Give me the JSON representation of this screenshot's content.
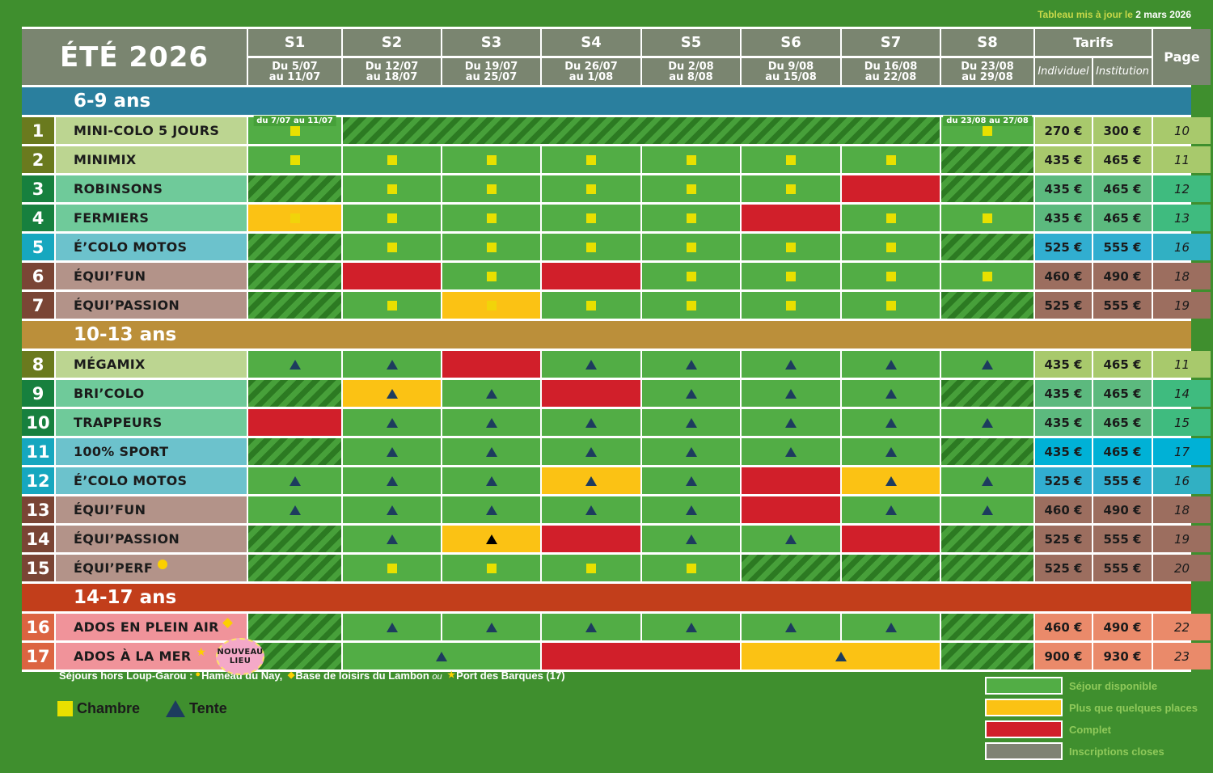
{
  "updated": {
    "label": "Tableau mis à jour le",
    "date": "2 mars 2026"
  },
  "header": {
    "title": "ÉTÉ 2026",
    "tarifs": "Tarifs",
    "individuel": "Individuel",
    "institution": "Institution",
    "page": "Page",
    "weeks": [
      {
        "w": "S1",
        "d1": "Du 5/07",
        "d2": "au 11/07"
      },
      {
        "w": "S2",
        "d1": "Du 12/07",
        "d2": "au 18/07"
      },
      {
        "w": "S3",
        "d1": "Du 19/07",
        "d2": "au 25/07"
      },
      {
        "w": "S4",
        "d1": "Du 26/07",
        "d2": "au 1/08"
      },
      {
        "w": "S5",
        "d1": "Du 2/08",
        "d2": "au 8/08"
      },
      {
        "w": "S6",
        "d1": "Du 9/08",
        "d2": "au 15/08"
      },
      {
        "w": "S7",
        "d1": "Du 16/08",
        "d2": "au 22/08"
      },
      {
        "w": "S8",
        "d1": "Du 23/08",
        "d2": "au 29/08"
      }
    ]
  },
  "colors": {
    "background": "#3f8f2e",
    "available": "#52ad45",
    "few_places": "#fbc214",
    "full": "#d11f2a",
    "closed": "#7f8373",
    "header": "#7a8570",
    "groups": {
      "lg": [
        "#6a7a1e",
        "#bcd591",
        "#a8c96c",
        "#a8c96c"
      ],
      "tg": [
        "#17803e",
        "#6fca9a",
        "#5cb97e",
        "#3fbb7f"
      ],
      "cy": [
        "#16a7bf",
        "#6cc2cc",
        "#31aed0",
        "#31b0c3"
      ],
      "cy2": [
        "#16a7bf",
        "#6cc2cc",
        "#00b1d6",
        "#00b1d6"
      ],
      "br": [
        "#7a4535",
        "#b39389",
        "#9c6e5f",
        "#9c6e5f"
      ],
      "pk": [
        "#dc6441",
        "#f0939a",
        "#ea8a6a",
        "#ea8a6a"
      ]
    }
  },
  "sections": [
    {
      "label": "6-9 ans",
      "color": "#2a7f9e",
      "rows": [
        {
          "n": "1",
          "name": "MINI-COLO 5 JOURS",
          "g": "lg",
          "ind": "270 €",
          "inst": "300 €",
          "page": "10",
          "cells": [
            [
              "ok",
              "sq",
              1,
              "du 7/07 au 11/07"
            ],
            [
              "hatch",
              "",
              6
            ],
            [
              "ok",
              "sq",
              1,
              "du 23/08 au 27/08"
            ]
          ]
        },
        {
          "n": "2",
          "name": "MINIMIX",
          "g": "lg",
          "ind": "435 €",
          "inst": "465 €",
          "page": "11",
          "cells": [
            [
              "ok",
              "sq"
            ],
            [
              "ok",
              "sq"
            ],
            [
              "ok",
              "sq"
            ],
            [
              "ok",
              "sq"
            ],
            [
              "ok",
              "sq"
            ],
            [
              "ok",
              "sq"
            ],
            [
              "ok",
              "sq"
            ],
            [
              "hatch",
              ""
            ]
          ]
        },
        {
          "n": "3",
          "name": "ROBINSONS",
          "g": "tg",
          "ind": "435 €",
          "inst": "465 €",
          "page": "12",
          "cells": [
            [
              "hatch",
              ""
            ],
            [
              "ok",
              "sq"
            ],
            [
              "ok",
              "sq"
            ],
            [
              "ok",
              "sq"
            ],
            [
              "ok",
              "sq"
            ],
            [
              "ok",
              "sq"
            ],
            [
              "full",
              ""
            ],
            [
              "hatch",
              ""
            ]
          ]
        },
        {
          "n": "4",
          "name": "FERMIERS",
          "g": "tg",
          "ind": "435 €",
          "inst": "465 €",
          "page": "13",
          "cells": [
            [
              "few",
              "sq"
            ],
            [
              "ok",
              "sq"
            ],
            [
              "ok",
              "sq"
            ],
            [
              "ok",
              "sq"
            ],
            [
              "ok",
              "sq"
            ],
            [
              "full",
              ""
            ],
            [
              "ok",
              "sq"
            ],
            [
              "ok",
              "sq"
            ]
          ]
        },
        {
          "n": "5",
          "name": "É’COLO MOTOS",
          "g": "cy",
          "ind": "525 €",
          "inst": "555 €",
          "page": "16",
          "cells": [
            [
              "hatch",
              ""
            ],
            [
              "ok",
              "sq"
            ],
            [
              "ok",
              "sq"
            ],
            [
              "ok",
              "sq"
            ],
            [
              "ok",
              "sq"
            ],
            [
              "ok",
              "sq"
            ],
            [
              "ok",
              "sq"
            ],
            [
              "hatch",
              ""
            ]
          ]
        },
        {
          "n": "6",
          "name": "ÉQUI’FUN",
          "g": "br",
          "ind": "460 €",
          "inst": "490 €",
          "page": "18",
          "cells": [
            [
              "hatch",
              ""
            ],
            [
              "full",
              ""
            ],
            [
              "ok",
              "sq"
            ],
            [
              "full",
              ""
            ],
            [
              "ok",
              "sq"
            ],
            [
              "ok",
              "sq"
            ],
            [
              "ok",
              "sq"
            ],
            [
              "ok",
              "sq"
            ]
          ]
        },
        {
          "n": "7",
          "name": "ÉQUI’PASSION",
          "g": "br",
          "ind": "525 €",
          "inst": "555 €",
          "page": "19",
          "cells": [
            [
              "hatch",
              ""
            ],
            [
              "ok",
              "sq"
            ],
            [
              "few",
              "sq"
            ],
            [
              "ok",
              "sq"
            ],
            [
              "ok",
              "sq"
            ],
            [
              "ok",
              "sq"
            ],
            [
              "ok",
              "sq"
            ],
            [
              "hatch",
              ""
            ]
          ]
        }
      ]
    },
    {
      "label": "10-13 ans",
      "color": "#bb8f3a",
      "rows": [
        {
          "n": "8",
          "name": "MÉGAMIX",
          "g": "lg",
          "ind": "435 €",
          "inst": "465 €",
          "page": "11",
          "cells": [
            [
              "ok",
              "tri"
            ],
            [
              "ok",
              "tri"
            ],
            [
              "full",
              ""
            ],
            [
              "ok",
              "tri"
            ],
            [
              "ok",
              "tri"
            ],
            [
              "ok",
              "tri"
            ],
            [
              "ok",
              "tri"
            ],
            [
              "ok",
              "tri"
            ]
          ]
        },
        {
          "n": "9",
          "name": "BRI’COLO",
          "g": "tg",
          "ind": "435 €",
          "inst": "465 €",
          "page": "14",
          "cells": [
            [
              "hatch",
              ""
            ],
            [
              "few",
              "tri"
            ],
            [
              "ok",
              "tri"
            ],
            [
              "full",
              ""
            ],
            [
              "ok",
              "tri"
            ],
            [
              "ok",
              "tri"
            ],
            [
              "ok",
              "tri"
            ],
            [
              "hatch",
              ""
            ]
          ]
        },
        {
          "n": "10",
          "name": "TRAPPEURS",
          "g": "tg",
          "ind": "435 €",
          "inst": "465 €",
          "page": "15",
          "cells": [
            [
              "full",
              ""
            ],
            [
              "ok",
              "tri"
            ],
            [
              "ok",
              "tri"
            ],
            [
              "ok",
              "tri"
            ],
            [
              "ok",
              "tri"
            ],
            [
              "ok",
              "tri"
            ],
            [
              "ok",
              "tri"
            ],
            [
              "ok",
              "tri"
            ]
          ]
        },
        {
          "n": "11",
          "name": "100% SPORT",
          "g": "cy2",
          "ind": "435 €",
          "inst": "465 €",
          "page": "17",
          "cells": [
            [
              "hatch",
              ""
            ],
            [
              "ok",
              "tri"
            ],
            [
              "ok",
              "tri"
            ],
            [
              "ok",
              "tri"
            ],
            [
              "ok",
              "tri"
            ],
            [
              "ok",
              "tri"
            ],
            [
              "ok",
              "tri"
            ],
            [
              "hatch",
              ""
            ]
          ]
        },
        {
          "n": "12",
          "name": "É’COLO MOTOS",
          "g": "cy",
          "ind": "525 €",
          "inst": "555 €",
          "page": "16",
          "cells": [
            [
              "ok",
              "tri"
            ],
            [
              "ok",
              "tri"
            ],
            [
              "ok",
              "tri"
            ],
            [
              "few",
              "tri"
            ],
            [
              "ok",
              "tri"
            ],
            [
              "full",
              ""
            ],
            [
              "few",
              "tri"
            ],
            [
              "ok",
              "tri"
            ]
          ]
        },
        {
          "n": "13",
          "name": "ÉQUI’FUN",
          "g": "br",
          "ind": "460 €",
          "inst": "490 €",
          "page": "18",
          "cells": [
            [
              "ok",
              "tri"
            ],
            [
              "ok",
              "tri"
            ],
            [
              "ok",
              "tri"
            ],
            [
              "ok",
              "tri"
            ],
            [
              "ok",
              "tri"
            ],
            [
              "full",
              ""
            ],
            [
              "ok",
              "tri"
            ],
            [
              "ok",
              "tri"
            ]
          ]
        },
        {
          "n": "14",
          "name": "ÉQUI’PASSION",
          "g": "br",
          "ind": "525 €",
          "inst": "555 €",
          "page": "19",
          "cells": [
            [
              "hatch",
              ""
            ],
            [
              "ok",
              "tri"
            ],
            [
              "few",
              "tri black"
            ],
            [
              "full",
              ""
            ],
            [
              "ok",
              "tri"
            ],
            [
              "ok",
              "tri"
            ],
            [
              "full",
              ""
            ],
            [
              "hatch",
              ""
            ]
          ]
        },
        {
          "n": "15",
          "name": "ÉQUI’PERF",
          "g": "br",
          "mark": "circle",
          "ind": "525 €",
          "inst": "555 €",
          "page": "20",
          "cells": [
            [
              "hatch",
              ""
            ],
            [
              "ok",
              "sq"
            ],
            [
              "ok",
              "sq"
            ],
            [
              "ok",
              "sq"
            ],
            [
              "ok",
              "sq"
            ],
            [
              "hatch",
              ""
            ],
            [
              "hatch",
              ""
            ],
            [
              "hatch",
              ""
            ]
          ]
        }
      ]
    },
    {
      "label": "14-17 ans",
      "color": "#c23e1b",
      "rows": [
        {
          "n": "16",
          "name": "ADOS EN PLEIN AIR",
          "g": "pk",
          "mark": "diamond",
          "ind": "460 €",
          "inst": "490 €",
          "page": "22",
          "cells": [
            [
              "hatch",
              ""
            ],
            [
              "ok",
              "tri"
            ],
            [
              "ok",
              "tri"
            ],
            [
              "ok",
              "tri"
            ],
            [
              "ok",
              "tri"
            ],
            [
              "ok",
              "tri"
            ],
            [
              "ok",
              "tri"
            ],
            [
              "hatch",
              ""
            ]
          ]
        },
        {
          "n": "17",
          "name": "ADOS À LA MER",
          "g": "pk",
          "mark": "star",
          "badge": "NOUVEAU LIEU",
          "ind": "900 €",
          "inst": "930 €",
          "page": "23",
          "cells": [
            [
              "hatch",
              ""
            ],
            [
              "ok",
              "tri",
              2
            ],
            [
              "full",
              "",
              2
            ],
            [
              "few",
              "tri",
              2
            ],
            [
              "hatch",
              ""
            ]
          ]
        }
      ]
    }
  ],
  "footnote": {
    "prefix": "Séjours hors Loup-Garou :",
    "a": "Hameau du Nay,",
    "b": "Base de loisirs du Lambon",
    "or": "ou",
    "c": "Port des Barques (17)"
  },
  "types": {
    "room": "Chambre",
    "tent": "Tente"
  },
  "legend": [
    {
      "label": "Séjour disponible",
      "color": "#52ad45"
    },
    {
      "label": "Plus que quelques places",
      "color": "#fbc214"
    },
    {
      "label": "Complet",
      "color": "#d11f2a"
    },
    {
      "label": "Inscriptions closes",
      "color": "#7f8373"
    }
  ]
}
